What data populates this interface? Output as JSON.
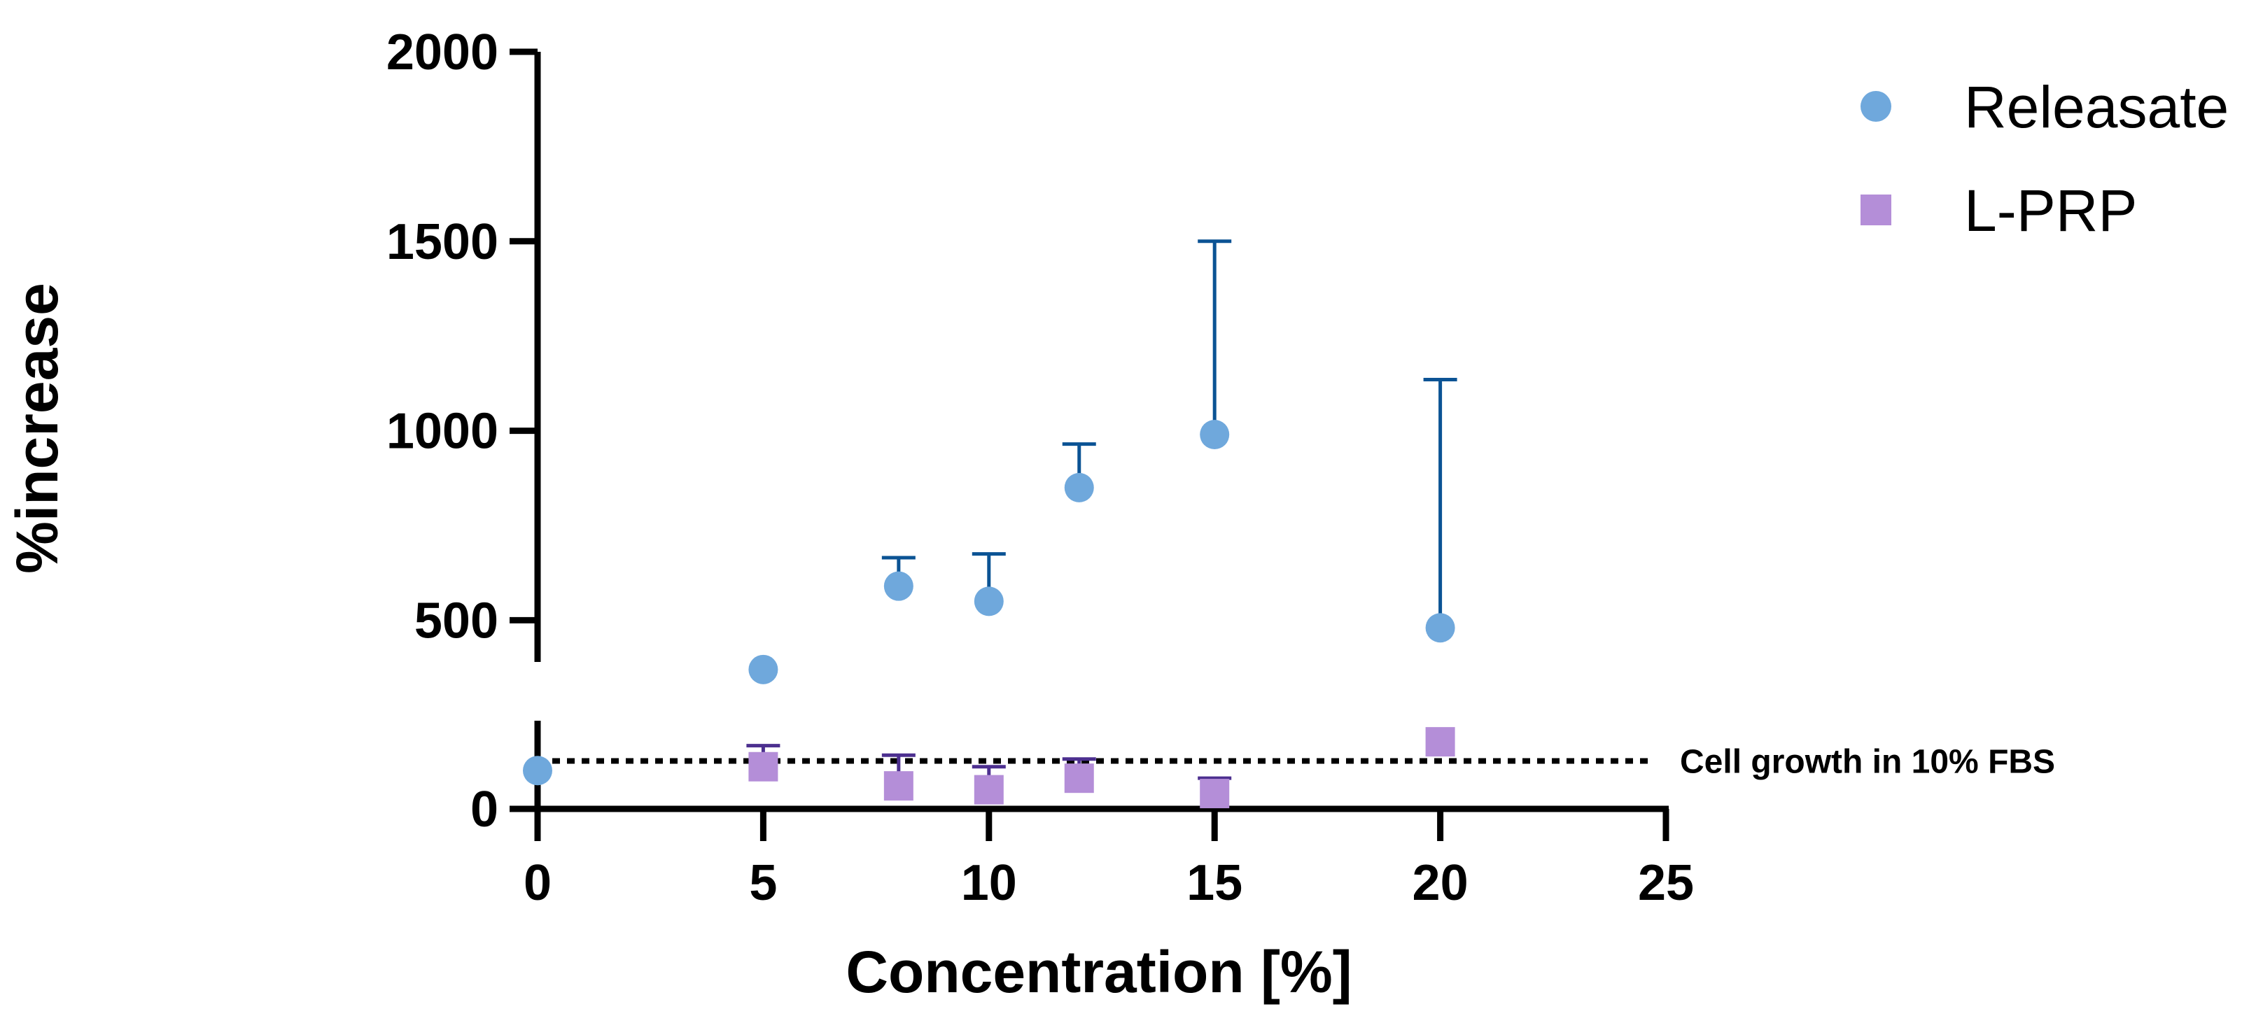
{
  "chart_data": {
    "type": "scatter",
    "xlabel": "Concentration [%]",
    "ylabel": "%increase",
    "xlim": [
      0,
      25
    ],
    "ylim": [
      0,
      2000
    ],
    "y_axis_break": [
      230,
      390
    ],
    "x_ticks": [
      0,
      5,
      10,
      15,
      20,
      25
    ],
    "x_tick_labels": [
      "0",
      "5",
      "10",
      "15",
      "20",
      "25"
    ],
    "y_ticks_lower": [
      0
    ],
    "y_tick_labels_lower": [
      "0"
    ],
    "y_ticks_upper": [
      500,
      1000,
      1500,
      2000
    ],
    "y_tick_labels_upper": [
      "500",
      "1000",
      "1500",
      "2000"
    ],
    "legend_position": "top-right",
    "series": [
      {
        "name": "Releasate",
        "marker": "circle",
        "color": "#6fa8dc",
        "error_color": "#0b5394",
        "x": [
          0,
          5,
          8,
          10,
          12,
          15,
          20
        ],
        "y": [
          100,
          370,
          590,
          550,
          850,
          990,
          480
        ],
        "error": [
          0,
          0,
          75,
          125,
          115,
          510,
          655
        ]
      },
      {
        "name": "L-PRP",
        "marker": "square",
        "color": "#b48ed8",
        "error_color": "#4c2f8f",
        "x": [
          5,
          8,
          10,
          12,
          15,
          20
        ],
        "y": [
          110,
          60,
          50,
          80,
          40,
          175
        ],
        "error": [
          55,
          80,
          60,
          50,
          40,
          0
        ]
      }
    ],
    "reference_line": {
      "y": 125,
      "style": "dotted",
      "label": "Cell growth in 10% FBS"
    }
  }
}
